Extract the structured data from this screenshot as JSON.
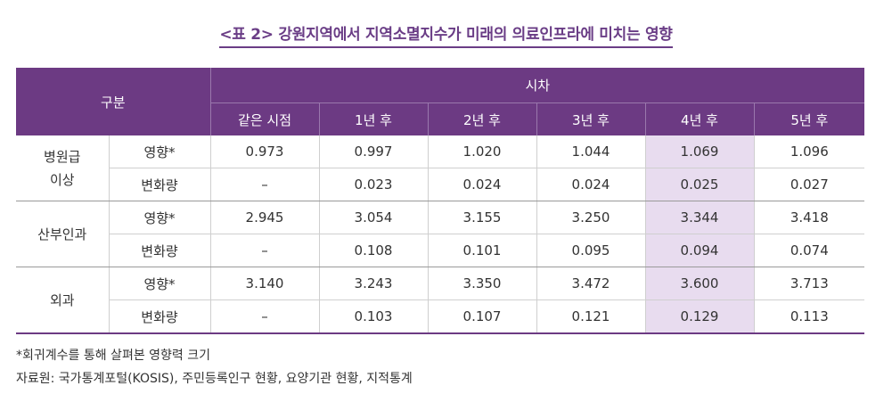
{
  "title": "<표 2> 강원지역에서 지역소멸지수가 미래의 의료인프라에 미치는 영향",
  "table": {
    "corner_label": "구분",
    "time_header": "시차",
    "columns": [
      "같은 시점",
      "1년 후",
      "2년 후",
      "3년 후",
      "4년 후",
      "5년 후"
    ],
    "highlight_color": "#e8dcef",
    "header_color": "#6c3a83",
    "groups": [
      {
        "category": "병원급\n이상",
        "rows": [
          {
            "label": "영향*",
            "values": [
              "0.973",
              "0.997",
              "1.020",
              "1.044",
              "1.069",
              "1.096"
            ]
          },
          {
            "label": "변화량",
            "values": [
              "–",
              "0.023",
              "0.024",
              "0.024",
              "0.025",
              "0.027"
            ]
          }
        ]
      },
      {
        "category": "산부인과",
        "rows": [
          {
            "label": "영향*",
            "values": [
              "2.945",
              "3.054",
              "3.155",
              "3.250",
              "3.344",
              "3.418"
            ]
          },
          {
            "label": "변화량",
            "values": [
              "–",
              "0.108",
              "0.101",
              "0.095",
              "0.094",
              "0.074"
            ]
          }
        ]
      },
      {
        "category": "외과",
        "rows": [
          {
            "label": "영향*",
            "values": [
              "3.140",
              "3.243",
              "3.350",
              "3.472",
              "3.600",
              "3.713"
            ]
          },
          {
            "label": "변화량",
            "values": [
              "–",
              "0.103",
              "0.107",
              "0.121",
              "0.129",
              "0.113"
            ]
          }
        ]
      }
    ]
  },
  "notes": {
    "footnote": "*회귀계수를 통해 살펴본 영향력 크기",
    "source": "자료원: 국가통계포털(KOSIS), 주민등록인구 현황, 요양기관 현황, 지적통계"
  }
}
